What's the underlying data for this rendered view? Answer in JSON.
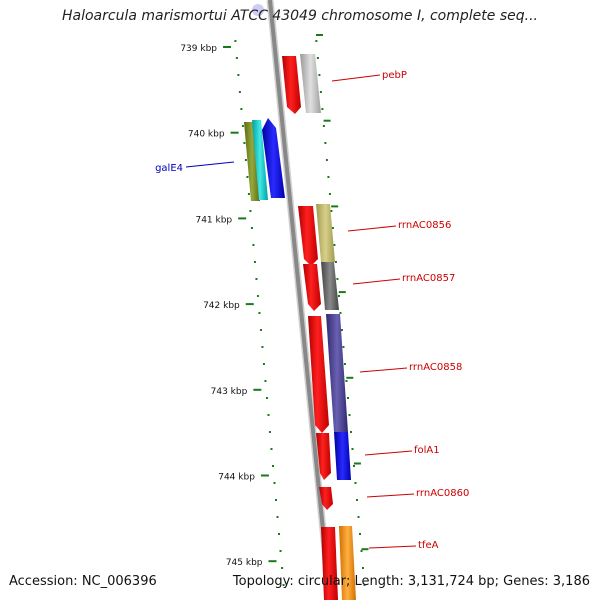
{
  "title": "Haloarcula marismortui ATCC 43049 chromosome I, complete seq...",
  "footer": {
    "accession": "Accession: NC_006396",
    "topology": "Topology: circular; Length: 3,131,724 bp; Genes: 3,186"
  },
  "colors": {
    "backbone": "#888888",
    "ticks": "#1a7a1a",
    "label_red": "#cc0000",
    "label_blue": "#0000bb"
  },
  "ticks": [
    {
      "label": "739 kbp"
    },
    {
      "label": "740 kbp"
    },
    {
      "label": "741 kbp"
    },
    {
      "label": "742 kbp"
    },
    {
      "label": "743 kbp"
    },
    {
      "label": "744 kbp"
    },
    {
      "label": "745 kbp"
    }
  ],
  "gene_labels": [
    {
      "name": "pebP",
      "color": "#cc0000"
    },
    {
      "name": "galE4",
      "color": "#0000bb"
    },
    {
      "name": "rrnAC0856",
      "color": "#cc0000"
    },
    {
      "name": "rrnAC0857",
      "color": "#cc0000"
    },
    {
      "name": "rrnAC0858",
      "color": "#cc0000"
    },
    {
      "name": "folA1",
      "color": "#cc0000"
    },
    {
      "name": "rrnAC0860",
      "color": "#cc0000"
    },
    {
      "name": "tfeA",
      "color": "#cc0000"
    }
  ]
}
